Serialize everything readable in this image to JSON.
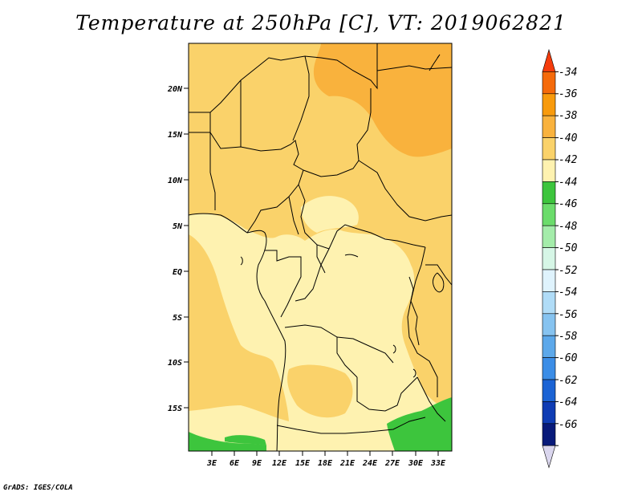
{
  "title": "Temperature at 250hPa [C], VT: 2019062821",
  "credit": "GrADS: IGES/COLA",
  "map": {
    "lon_range": [
      0,
      35
    ],
    "lat_range": [
      -20,
      25
    ],
    "lon_ticks": [
      "3E",
      "6E",
      "9E",
      "12E",
      "15E",
      "18E",
      "21E",
      "24E",
      "27E",
      "30E",
      "33E"
    ],
    "lat_ticks": [
      "20N",
      "15N",
      "10N",
      "5N",
      "EQ",
      "5S",
      "10S",
      "15S"
    ]
  },
  "colorbar": {
    "labels": [
      "-34",
      "-36",
      "-38",
      "-40",
      "-42",
      "-44",
      "-46",
      "-48",
      "-50",
      "-52",
      "-54",
      "-56",
      "-58",
      "-60",
      "-62",
      "-64",
      "-66"
    ],
    "colors": [
      "#f53c0c",
      "#f56a0a",
      "#f89a0c",
      "#f9b23d",
      "#fad26a",
      "#fef2b0",
      "#3dc53d",
      "#6bdc6b",
      "#a4ecaa",
      "#d6f6e6",
      "#dff3fd",
      "#b0dcf7",
      "#86c3f0",
      "#5ca8ea",
      "#3b8de6",
      "#1b63d4",
      "#0f3cb4",
      "#081a7a",
      "#dad6ee"
    ]
  }
}
